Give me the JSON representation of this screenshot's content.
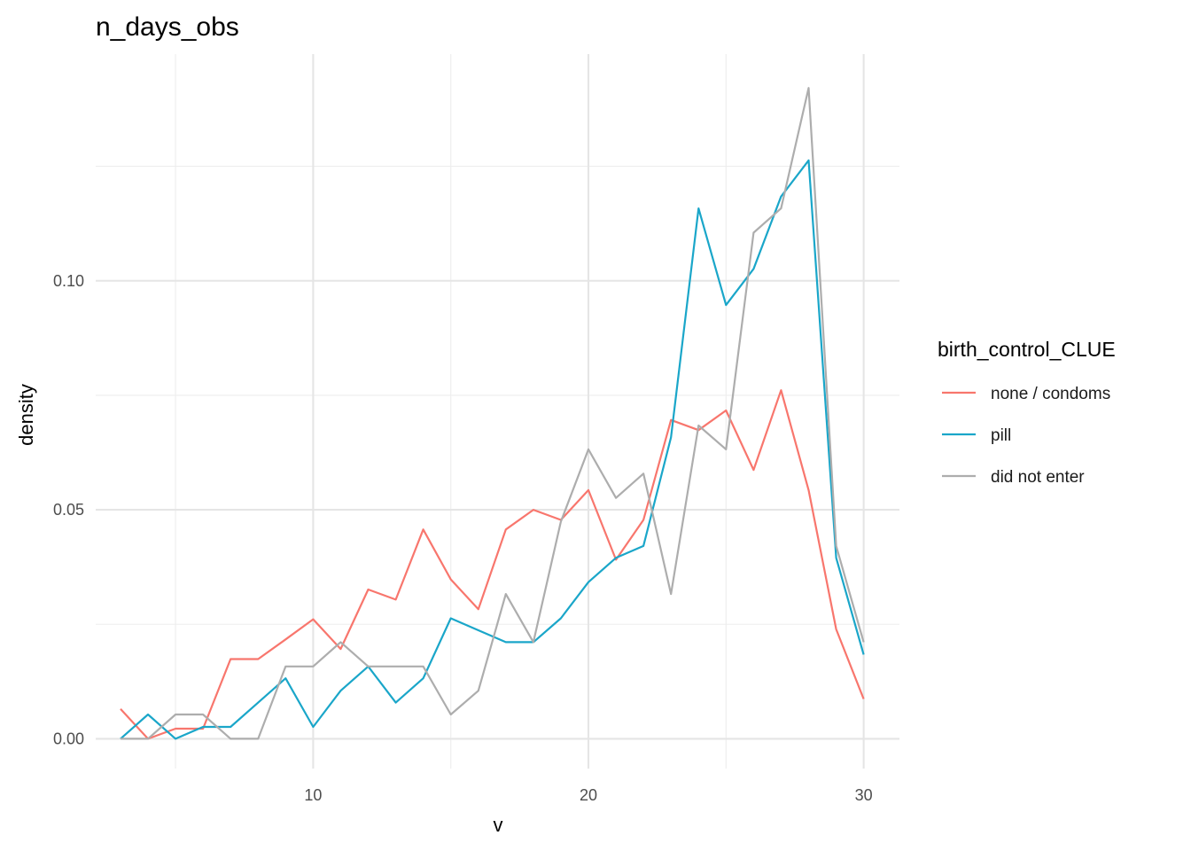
{
  "chart_data": {
    "type": "line",
    "title": "n_days_obs",
    "xlabel": "v",
    "ylabel": "density",
    "x_ticks": [
      10,
      20,
      30
    ],
    "y_ticks": [
      0.0,
      0.05,
      0.1
    ],
    "y_tick_labels": [
      "0.00",
      "0.05",
      "0.10"
    ],
    "x_minor_ticks": [
      5,
      15,
      25
    ],
    "y_minor_ticks": [
      0.025,
      0.075,
      0.125
    ],
    "xlim": [
      2.1,
      31.3
    ],
    "ylim": [
      -0.0065,
      0.1495
    ],
    "grid": true,
    "legend": {
      "title": "birth_control_CLUE",
      "position": "right"
    },
    "x": [
      3,
      4,
      5,
      6,
      7,
      8,
      9,
      10,
      11,
      12,
      13,
      14,
      15,
      16,
      17,
      18,
      19,
      20,
      21,
      22,
      23,
      24,
      25,
      26,
      27,
      28,
      29,
      30
    ],
    "series": [
      {
        "name": "none / condoms",
        "color": "#F8766D",
        "values": [
          0.0065,
          0.0,
          0.0022,
          0.0022,
          0.0174,
          0.0174,
          0.0217,
          0.0261,
          0.0196,
          0.0326,
          0.0304,
          0.0457,
          0.0348,
          0.0283,
          0.0457,
          0.05,
          0.0478,
          0.0543,
          0.0391,
          0.0478,
          0.0696,
          0.0674,
          0.0717,
          0.0587,
          0.0761,
          0.0543,
          0.0239,
          0.0087
        ]
      },
      {
        "name": "pill",
        "color": "#1AA6C9",
        "values": [
          0.0,
          0.0053,
          0.0,
          0.0026,
          0.0026,
          0.0079,
          0.0132,
          0.0026,
          0.0105,
          0.0158,
          0.0079,
          0.0132,
          0.0263,
          0.0237,
          0.0211,
          0.0211,
          0.0263,
          0.0342,
          0.0395,
          0.0421,
          0.0658,
          0.1158,
          0.0947,
          0.1026,
          0.1184,
          0.1263,
          0.0395,
          0.0184
        ]
      },
      {
        "name": "did not enter",
        "color": "#ADADAD",
        "values": [
          0.0,
          0.0,
          0.0053,
          0.0053,
          0.0,
          0.0,
          0.0158,
          0.0158,
          0.0211,
          0.0158,
          0.0158,
          0.0158,
          0.0053,
          0.0105,
          0.0316,
          0.0211,
          0.0474,
          0.0632,
          0.0526,
          0.0579,
          0.0316,
          0.0684,
          0.0632,
          0.1105,
          0.1158,
          0.1421,
          0.0421,
          0.0211
        ]
      }
    ]
  }
}
